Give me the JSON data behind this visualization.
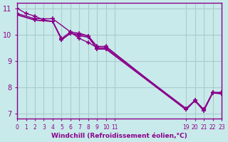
{
  "background_color": "#c8eaea",
  "line_color": "#8b008b",
  "grid_color": "#aacccc",
  "xlabel": "Windchill (Refroidissement éolien,°C)",
  "xlim": [
    0,
    23
  ],
  "ylim": [
    6.8,
    11.2
  ],
  "yticks": [
    7,
    8,
    9,
    10,
    11
  ],
  "xtick_positions": [
    0,
    1,
    2,
    3,
    4,
    5,
    6,
    7,
    8,
    9,
    10,
    11,
    19,
    20,
    21,
    22,
    23
  ],
  "xtick_labels": [
    "0",
    "1",
    "2",
    "3",
    "4",
    "5",
    "6",
    "7",
    "8",
    "9",
    "10",
    "11",
    "19",
    "20",
    "21",
    "22",
    "23"
  ],
  "lines": [
    {
      "x": [
        0,
        2,
        4,
        6,
        7,
        8,
        9,
        10,
        19,
        20,
        21,
        22,
        23
      ],
      "y": [
        10.8,
        10.6,
        10.6,
        10.1,
        9.85,
        9.7,
        9.5,
        9.5,
        7.2,
        7.5,
        7.15,
        7.8,
        7.8
      ]
    },
    {
      "x": [
        0,
        1,
        2,
        3,
        4,
        5,
        6,
        7,
        8,
        9,
        10,
        19,
        20,
        21,
        22,
        23
      ],
      "y": [
        11.0,
        10.8,
        10.7,
        10.55,
        10.5,
        9.85,
        10.1,
        10.05,
        9.95,
        9.55,
        9.55,
        7.15,
        7.5,
        7.15,
        7.8,
        7.8
      ]
    },
    {
      "x": [
        0,
        2,
        4,
        5,
        6,
        7,
        8,
        9,
        10,
        19,
        20,
        21,
        22,
        23
      ],
      "y": [
        10.75,
        10.55,
        10.5,
        9.8,
        10.05,
        10.0,
        9.95,
        9.45,
        9.45,
        7.15,
        7.5,
        7.15,
        7.8,
        7.75
      ]
    },
    {
      "x": [
        0,
        2,
        4,
        5,
        6,
        7,
        8,
        9,
        10,
        19,
        20,
        21,
        22,
        23
      ],
      "y": [
        10.75,
        10.55,
        10.5,
        9.8,
        10.05,
        9.95,
        9.9,
        9.45,
        9.45,
        7.15,
        7.48,
        7.1,
        7.78,
        7.75
      ]
    }
  ]
}
